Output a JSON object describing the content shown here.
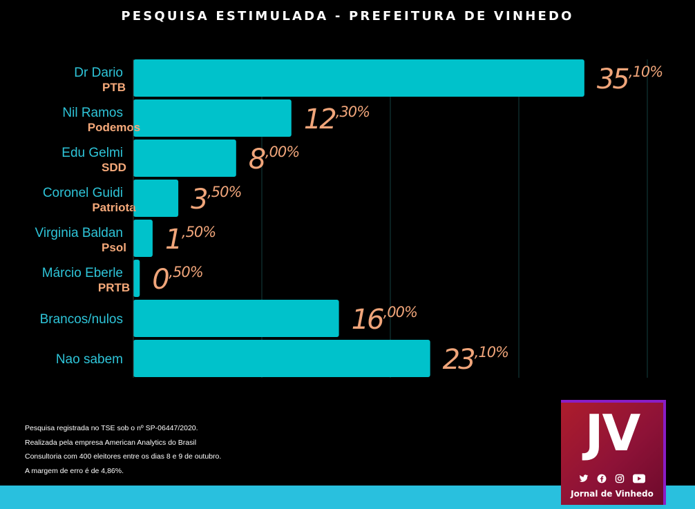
{
  "title": "PESQUISA ESTIMULADA - PREFEITURA DE VINHEDO",
  "chart_data": {
    "type": "bar",
    "orientation": "horizontal",
    "categories": [
      "Dr Dario",
      "Nil Ramos",
      "Edu Gelmi",
      "Coronel Guidi",
      "Virginia Baldan",
      "Márcio Eberle",
      "Brancos/nulos",
      "Nao sabem"
    ],
    "parties": [
      "PTB",
      "Podemos",
      "SDD",
      "Patriota",
      "Psol",
      "PRTB",
      "",
      ""
    ],
    "values": [
      35.1,
      12.3,
      8.0,
      3.5,
      1.5,
      0.5,
      16.0,
      23.1
    ],
    "value_labels_int": [
      "35",
      "12",
      "8",
      "3",
      "1",
      "0",
      "16",
      "23"
    ],
    "value_labels_dec": [
      ",10%",
      ",30%",
      ",00%",
      ",50%",
      ",50%",
      ",50%",
      ",00%",
      ",10%"
    ],
    "xlim": [
      0,
      40
    ],
    "grid": true,
    "colors": {
      "bar": "#00c2cb",
      "label": "#2ec4d8",
      "party": "#f5a97a",
      "value": "#f0a57a",
      "grid": "#14403f"
    }
  },
  "notes": [
    "Pesquisa registrada no TSE sob o nº SP-06447/2020.",
    "Realizada pela empresa American Analytics do Brasil",
    "Consultoria com 400 eleitores entre os dias 8 e 9 de outubro.",
    "A margem de erro é de 4,86%."
  ],
  "logo": {
    "mark": "JV",
    "name": "Jornal de Vinhedo",
    "icons": [
      "twitter-icon",
      "facebook-icon",
      "instagram-icon",
      "youtube-icon"
    ]
  }
}
